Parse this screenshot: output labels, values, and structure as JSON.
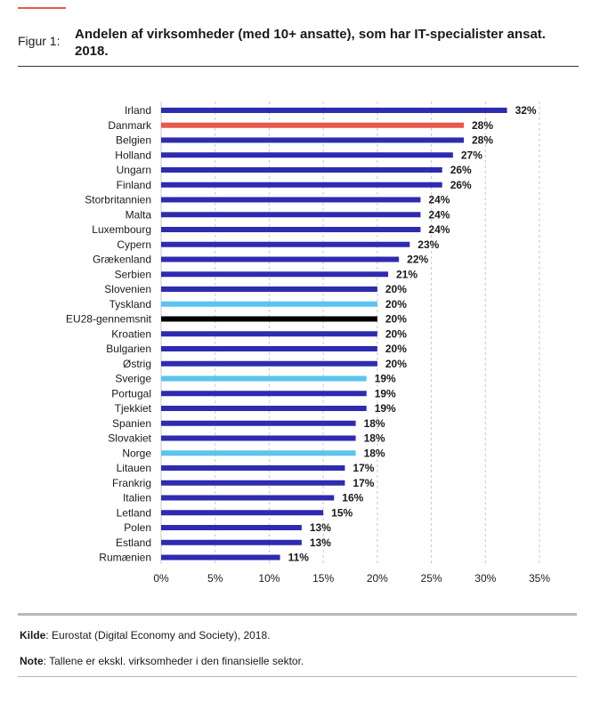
{
  "figure": {
    "label": "Figur 1:",
    "title": "Andelen af virksomheder (med 10+ ansatte), som har IT-specialister ansat. 2018."
  },
  "colors": {
    "default": "#2e2bb0",
    "highlight": "#e8584b",
    "average": "#000000",
    "nordic": "#5bc4ef",
    "accent": "#e8584b"
  },
  "chart_data": {
    "type": "bar",
    "orientation": "horizontal",
    "categories": [
      "Irland",
      "Danmark",
      "Belgien",
      "Holland",
      "Ungarn",
      "Finland",
      "Storbritannien",
      "Malta",
      "Luxembourg",
      "Cypern",
      "Grækenland",
      "Serbien",
      "Slovenien",
      "Tyskland",
      "EU28-gennemsnit",
      "Kroatien",
      "Bulgarien",
      "Østrig",
      "Sverige",
      "Portugal",
      "Tjekkiet",
      "Spanien",
      "Slovakiet",
      "Norge",
      "Litauen",
      "Frankrig",
      "Italien",
      "Letland",
      "Polen",
      "Estland",
      "Rumænien"
    ],
    "values": [
      32,
      28,
      28,
      27,
      26,
      26,
      24,
      24,
      24,
      23,
      22,
      21,
      20,
      20,
      20,
      20,
      20,
      20,
      19,
      19,
      19,
      18,
      18,
      18,
      17,
      17,
      16,
      15,
      13,
      13,
      11
    ],
    "value_labels": [
      "32%",
      "28%",
      "28%",
      "27%",
      "26%",
      "26%",
      "24%",
      "24%",
      "24%",
      "23%",
      "22%",
      "21%",
      "20%",
      "20%",
      "20%",
      "20%",
      "20%",
      "20%",
      "19%",
      "19%",
      "19%",
      "18%",
      "18%",
      "18%",
      "17%",
      "17%",
      "16%",
      "15%",
      "13%",
      "13%",
      "11%"
    ],
    "bar_colors": [
      "default",
      "highlight",
      "default",
      "default",
      "default",
      "default",
      "default",
      "default",
      "default",
      "default",
      "default",
      "default",
      "default",
      "nordic",
      "average",
      "default",
      "default",
      "default",
      "nordic",
      "default",
      "default",
      "default",
      "default",
      "nordic",
      "default",
      "default",
      "default",
      "default",
      "default",
      "default",
      "default"
    ],
    "xlim": [
      0,
      35
    ],
    "xticks": [
      "0%",
      "5%",
      "10%",
      "15%",
      "20%",
      "25%",
      "30%",
      "35%"
    ],
    "grid": "vertical dashed",
    "title": "",
    "xlabel": "",
    "ylabel": ""
  },
  "source": {
    "label": "Kilde",
    "text": ": Eurostat (Digital Economy and Society), 2018."
  },
  "note": {
    "label": "Note",
    "text": ": Tallene er ekskl. virksomheder i den finansielle sektor."
  }
}
